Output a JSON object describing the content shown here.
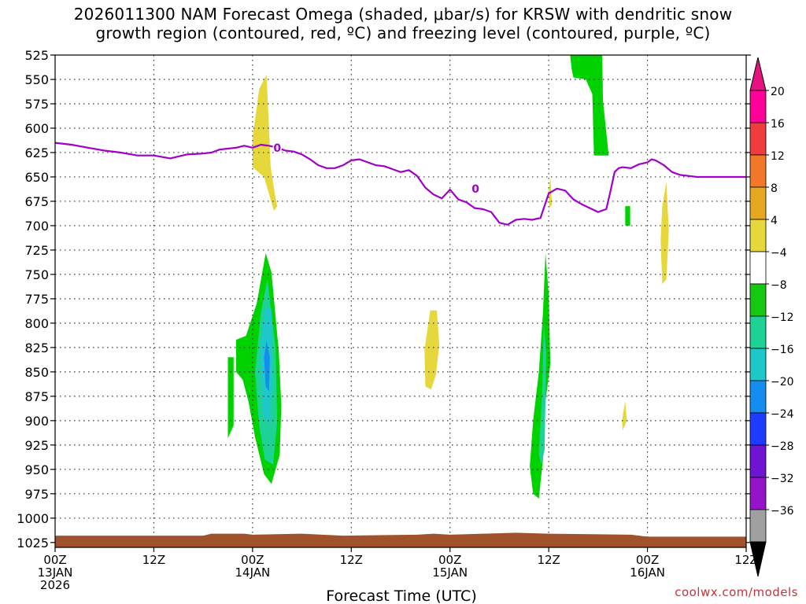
{
  "chart_data": {
    "type": "heatmap",
    "title_lines": [
      "2026011300 NAM Forecast Omega (shaded, μbar/s) for KRSW with dendritic snow",
      "growth region (contoured, red, ºC) and freezing level (contoured, purple, ºC)"
    ],
    "xlabel": "Forecast Time (UTC)",
    "ylabel": "",
    "x_ticks": [
      {
        "hours": 0,
        "line1": "00Z",
        "line2": "13JAN",
        "line3": "2026"
      },
      {
        "hours": 12,
        "line1": "12Z",
        "line2": "",
        "line3": ""
      },
      {
        "hours": 24,
        "line1": "00Z",
        "line2": "14JAN",
        "line3": ""
      },
      {
        "hours": 36,
        "line1": "12Z",
        "line2": "",
        "line3": ""
      },
      {
        "hours": 48,
        "line1": "00Z",
        "line2": "15JAN",
        "line3": ""
      },
      {
        "hours": 60,
        "line1": "12Z",
        "line2": "",
        "line3": ""
      },
      {
        "hours": 72,
        "line1": "00Z",
        "line2": "16JAN",
        "line3": ""
      },
      {
        "hours": 84,
        "line1": "12Z",
        "line2": "",
        "line3": ""
      }
    ],
    "xlim": [
      0,
      84
    ],
    "y_ticks": [
      525,
      550,
      575,
      600,
      625,
      650,
      675,
      700,
      725,
      750,
      775,
      800,
      825,
      850,
      875,
      900,
      925,
      950,
      975,
      1000,
      1025
    ],
    "ylim": [
      525,
      1030
    ],
    "grid": true,
    "colorbar": {
      "labels": [
        "20",
        "16",
        "12",
        "8",
        "4",
        "−4",
        "−8",
        "−12",
        "−16",
        "−20",
        "−24",
        "−28",
        "−32",
        "−36"
      ],
      "bands": [
        "#ff0099",
        "#f03c3c",
        "#f07828",
        "#e6a81e",
        "#e6d83c",
        "#ffffff",
        "#14c814",
        "#1ed296",
        "#1ec8c8",
        "#148cf0",
        "#1e3cff",
        "#6e14d2",
        "#9614c8",
        "#a0a0a0"
      ],
      "top_arrow": "#e6127f",
      "bottom_arrow": "#000000"
    },
    "colors": {
      "light_green": "#00d200",
      "teal": "#1ed296",
      "cyan": "#1ec8c8",
      "blue": "#148cf0",
      "yellow": "#e6d83c",
      "freezing_level": "#a000c8",
      "terrain": "#a0522d"
    },
    "freezing_level": {
      "hours": [
        0,
        2,
        4,
        6,
        8,
        10,
        12,
        14,
        16,
        18,
        19,
        20,
        21,
        22,
        23,
        24,
        25,
        26,
        27,
        28,
        29,
        30,
        31,
        32,
        33,
        34,
        35,
        36,
        37,
        38,
        39,
        40,
        41,
        42,
        43,
        44,
        45,
        46,
        47,
        48,
        49,
        50,
        51,
        52,
        53,
        54,
        55,
        56,
        57,
        58,
        59,
        60,
        61,
        62,
        63,
        64,
        65,
        66,
        67,
        67.5,
        68,
        68.5,
        69,
        70,
        71,
        72,
        72.5,
        73,
        74,
        75,
        76,
        77,
        78,
        79,
        80,
        81,
        82,
        83,
        84
      ],
      "pressure": [
        615,
        617,
        620,
        623,
        625,
        628,
        628,
        631,
        627,
        626,
        625,
        622,
        621,
        620,
        618,
        620,
        617,
        618,
        620,
        623,
        624,
        627,
        632,
        638,
        641,
        641,
        638,
        633,
        632,
        635,
        638,
        639,
        642,
        645,
        643,
        649,
        661,
        668,
        672,
        663,
        673,
        676,
        682,
        683,
        686,
        697,
        699,
        694,
        693,
        694,
        692,
        667,
        662,
        664,
        673,
        678,
        682,
        686,
        683,
        665,
        645,
        641,
        640,
        641,
        637,
        635,
        632,
        633,
        638,
        645,
        648,
        649,
        650,
        650,
        650,
        650,
        650,
        650,
        650
      ],
      "zero_labels": [
        {
          "hours": 27.0,
          "pressure": 620
        },
        {
          "hours": 51.1,
          "pressure": 662
        }
      ]
    },
    "omega_regions": [
      {
        "value": "-8 to -4",
        "color": "light_green",
        "description": "ascent centered ~840 mb near 14JAN 01Z, extends 725-960 mb"
      },
      {
        "value": "-12 to -8",
        "color": "teal",
        "description": "core 760-950 mb near 14JAN 01Z"
      },
      {
        "value": "-16 to -12",
        "color": "cyan",
        "description": "inner core 780-900 mb near 14JAN 01Z"
      },
      {
        "value": "-20 to -16",
        "color": "blue",
        "description": "maximum 815-870 mb near 14JAN 01Z"
      },
      {
        "value": "-8 to -4",
        "color": "light_green",
        "description": "narrow column 725-980 mb near 15JAN 10Z-11Z"
      },
      {
        "value": "-8 to -4",
        "color": "light_green",
        "description": "upper-level ascent 525-625 mb near 15JAN 18Z"
      },
      {
        "value": "4 to 8",
        "color": "yellow",
        "description": "weak descent 545-680 mb near 14JAN 01Z"
      }
    ]
  },
  "credit": "coolwx.com/models"
}
